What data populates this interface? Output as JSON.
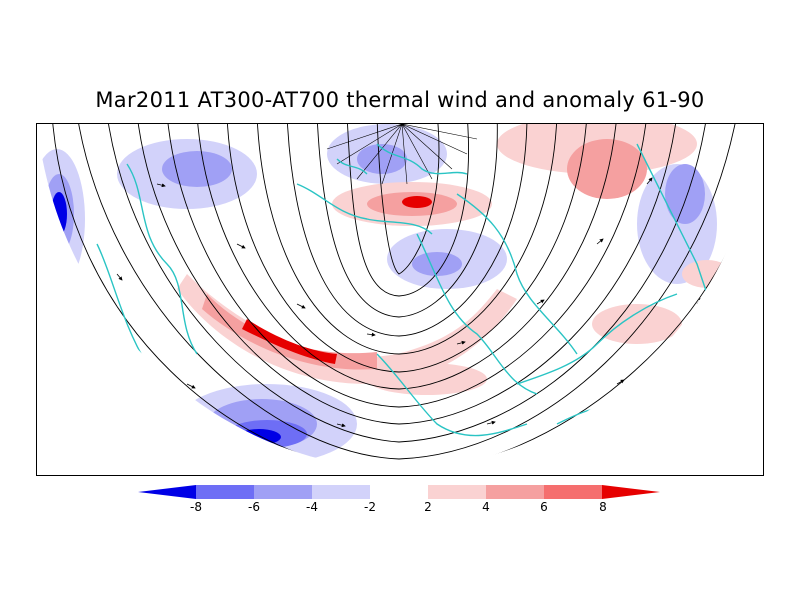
{
  "title": "Mar2011 AT300-AT700 thermal wind and anomaly 61-90",
  "colorbar": {
    "labels": [
      "-8",
      "-6",
      "-4",
      "-2",
      "2",
      "4",
      "6",
      "8"
    ],
    "colors": [
      "#0000e6",
      "#6e6ef5",
      "#a0a0f5",
      "#d2d2fa",
      "#ffffff",
      "#fad2d2",
      "#f5a0a0",
      "#f56e6e",
      "#e60000"
    ]
  },
  "map": {
    "projection": "polar-stereographic-northern-hemisphere",
    "land_outline_color": "#2ac4c4",
    "streamline_color": "#000000"
  }
}
